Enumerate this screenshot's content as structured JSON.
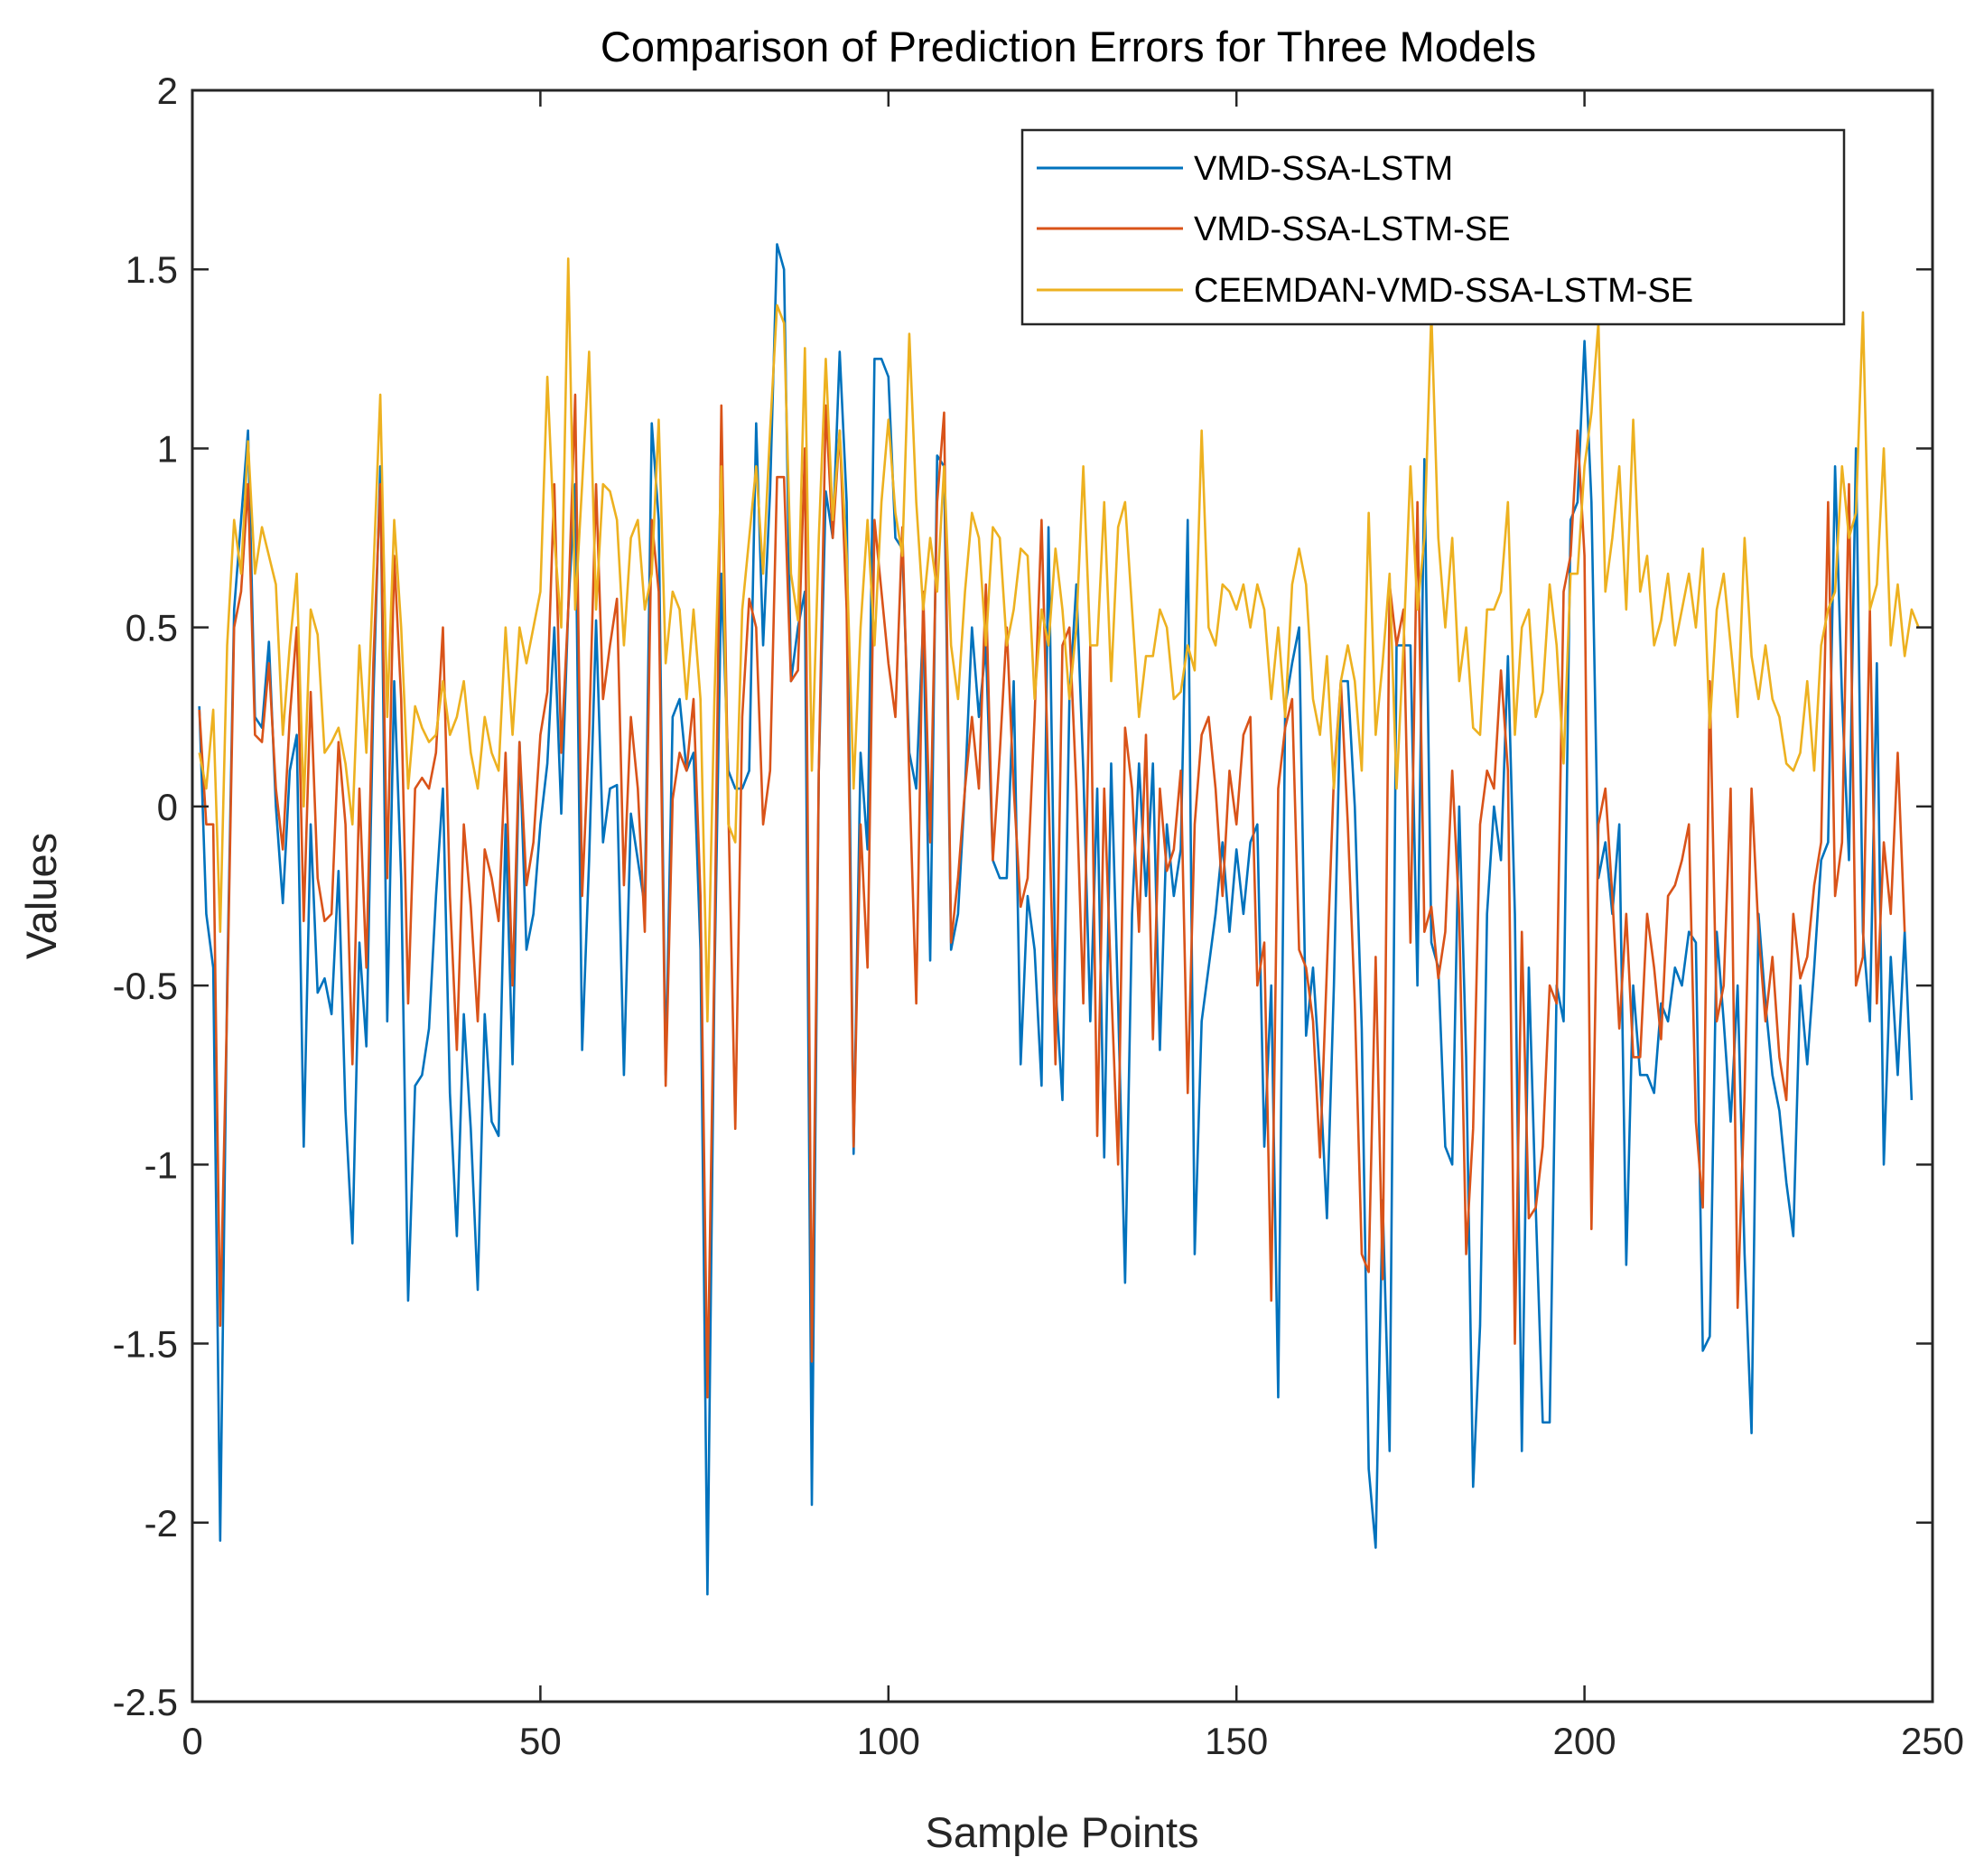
{
  "chart_data": {
    "type": "line",
    "title": "Comparison of Prediction Errors for Three Models",
    "xlabel": "Sample Points",
    "ylabel": "Values",
    "xlim": [
      0,
      250
    ],
    "ylim": [
      -2.5,
      2
    ],
    "xticks": [
      0,
      50,
      100,
      150,
      200,
      250
    ],
    "xtick_labels": [
      "0",
      "50",
      "100",
      "150",
      "200",
      "250"
    ],
    "yticks": [
      -2.5,
      -2,
      -1.5,
      -1,
      -0.5,
      0,
      0.5,
      1,
      1.5,
      2
    ],
    "ytick_labels": [
      "-2.5",
      "-2",
      "-1.5",
      "-1",
      "-0.5",
      "0",
      "0.5",
      "1",
      "1.5",
      "2"
    ],
    "grid": false,
    "legend_position": "top-right",
    "series": [
      {
        "name": "VMD-SSA-LSTM",
        "color": "#0072BD",
        "x_start": 1,
        "values": [
          0.28,
          -0.3,
          -0.45,
          -2.05,
          -0.5,
          0.55,
          0.8,
          1.05,
          0.25,
          0.22,
          0.46,
          0.0,
          -0.27,
          0.1,
          0.2,
          -0.95,
          -0.05,
          -0.52,
          -0.48,
          -0.58,
          -0.18,
          -0.85,
          -1.22,
          -0.38,
          -0.67,
          0.3,
          0.95,
          -0.6,
          0.35,
          -0.2,
          -1.38,
          -0.78,
          -0.75,
          -0.62,
          -0.25,
          0.05,
          -0.8,
          -1.2,
          -0.58,
          -0.9,
          -1.35,
          -0.58,
          -0.88,
          -0.92,
          -0.05,
          -0.72,
          0.18,
          -0.4,
          -0.3,
          -0.05,
          0.12,
          0.5,
          -0.02,
          0.55,
          0.9,
          -0.68,
          -0.15,
          0.52,
          -0.1,
          0.05,
          0.06,
          -0.75,
          -0.02,
          -0.15,
          -0.28,
          1.07,
          0.8,
          -0.75,
          0.25,
          0.3,
          0.1,
          0.15,
          -0.4,
          -2.2,
          -0.5,
          0.65,
          0.1,
          0.05,
          0.05,
          0.1,
          1.07,
          0.45,
          0.88,
          1.57,
          1.5,
          0.35,
          0.5,
          0.6,
          -1.95,
          0.1,
          0.88,
          0.75,
          1.27,
          0.85,
          -0.97,
          0.15,
          -0.12,
          1.25,
          1.25,
          1.2,
          0.75,
          0.72,
          0.15,
          0.05,
          0.52,
          -0.43,
          0.98,
          0.95,
          -0.4,
          -0.3,
          0.05,
          0.5,
          0.25,
          0.45,
          -0.15,
          -0.2,
          -0.2,
          0.35,
          -0.72,
          -0.25,
          -0.4,
          -0.78,
          0.78,
          -0.5,
          -0.82,
          0.3,
          0.62,
          0.1,
          -0.6,
          0.05,
          -0.98,
          0.12,
          -0.55,
          -1.33,
          -0.3,
          0.12,
          -0.25,
          0.12,
          -0.68,
          -0.05,
          -0.25,
          -0.12,
          0.8,
          -1.25,
          -0.6,
          -0.45,
          -0.3,
          -0.1,
          -0.35,
          -0.12,
          -0.3,
          -0.1,
          -0.05,
          -0.95,
          -0.5,
          -1.65,
          0.28,
          0.4,
          0.5,
          -0.64,
          -0.45,
          -0.75,
          -1.15,
          -0.5,
          0.35,
          0.35,
          0.0,
          -0.62,
          -1.85,
          -2.07,
          -1.1,
          -1.8,
          0.45,
          0.45,
          0.45,
          -0.5,
          0.97,
          -0.38,
          -0.45,
          -0.95,
          -1.0,
          0.0,
          -0.7,
          -1.9,
          -1.45,
          -0.3,
          0.0,
          -0.15,
          0.42,
          -0.3,
          -1.8,
          -0.45,
          -1.12,
          -1.72,
          -1.72,
          -0.5,
          -0.6,
          0.8,
          0.85,
          1.3,
          0.85,
          -0.2,
          -0.1,
          -0.3,
          -0.05,
          -1.28,
          -0.5,
          -0.75,
          -0.75,
          -0.8,
          -0.55,
          -0.6,
          -0.45,
          -0.5,
          -0.35,
          -0.38,
          -1.52,
          -1.48,
          -0.35,
          -0.6,
          -0.88,
          -0.5,
          -1.25,
          -1.75,
          -0.3,
          -0.55,
          -0.75,
          -0.85,
          -1.05,
          -1.2,
          -0.5,
          -0.72,
          -0.45,
          -0.15,
          -0.1,
          0.95,
          0.3,
          -0.15,
          1.0,
          -0.35,
          -0.6,
          0.4,
          -1.0,
          -0.42,
          -0.75,
          -0.35,
          -0.82
        ]
      },
      {
        "name": "VMD-SSA-LSTM-SE",
        "color": "#D95319",
        "x_start": 1,
        "values": [
          0.27,
          -0.05,
          -0.05,
          -1.45,
          -0.55,
          0.5,
          0.6,
          0.9,
          0.2,
          0.18,
          0.4,
          0.05,
          -0.12,
          0.25,
          0.5,
          -0.32,
          0.32,
          -0.2,
          -0.32,
          -0.3,
          0.18,
          -0.05,
          -0.72,
          0.05,
          -0.45,
          0.4,
          0.9,
          -0.2,
          0.7,
          0.3,
          -0.55,
          0.05,
          0.08,
          0.05,
          0.15,
          0.5,
          -0.25,
          -0.68,
          -0.05,
          -0.28,
          -0.6,
          -0.12,
          -0.2,
          -0.32,
          0.15,
          -0.5,
          0.18,
          -0.22,
          -0.1,
          0.2,
          0.32,
          0.9,
          0.15,
          0.55,
          1.15,
          -0.25,
          0.2,
          0.9,
          0.3,
          0.45,
          0.58,
          -0.22,
          0.25,
          0.05,
          -0.35,
          0.8,
          0.6,
          -0.78,
          0.02,
          0.15,
          0.1,
          0.3,
          -0.25,
          -1.65,
          -0.42,
          1.12,
          0.0,
          -0.9,
          0.25,
          0.58,
          0.5,
          -0.05,
          0.1,
          0.92,
          0.92,
          0.35,
          0.38,
          1.0,
          -1.55,
          0.1,
          1.12,
          0.75,
          1.05,
          0.55,
          -0.95,
          -0.05,
          -0.45,
          0.8,
          0.6,
          0.4,
          0.25,
          0.78,
          0.08,
          -0.55,
          0.6,
          -0.1,
          0.85,
          1.1,
          -0.38,
          -0.2,
          0.05,
          0.25,
          0.05,
          0.62,
          -0.15,
          0.15,
          0.5,
          0.05,
          -0.28,
          -0.2,
          0.25,
          0.8,
          0.05,
          -0.72,
          0.45,
          0.5,
          0.05,
          -0.55,
          0.45,
          -0.92,
          0.05,
          -0.5,
          -1.0,
          0.22,
          0.05,
          -0.35,
          0.2,
          -0.65,
          0.05,
          -0.18,
          -0.12,
          0.1,
          -0.8,
          -0.05,
          0.2,
          0.25,
          0.05,
          -0.25,
          0.1,
          -0.05,
          0.2,
          0.25,
          -0.5,
          -0.38,
          -1.38,
          0.05,
          0.22,
          0.3,
          -0.4,
          -0.45,
          -0.6,
          -0.98,
          -0.45,
          0.08,
          0.35,
          -0.05,
          -0.55,
          -1.25,
          -1.3,
          -0.42,
          -1.32,
          0.62,
          0.45,
          0.55,
          -0.38,
          0.85,
          -0.35,
          -0.28,
          -0.48,
          -0.35,
          0.1,
          -0.3,
          -1.25,
          -0.9,
          -0.05,
          0.1,
          0.05,
          0.38,
          0.1,
          -1.5,
          -0.35,
          -1.15,
          -1.12,
          -0.95,
          -0.5,
          -0.55,
          0.6,
          0.7,
          1.05,
          0.7,
          -1.18,
          -0.05,
          0.05,
          -0.25,
          -0.62,
          -0.3,
          -0.7,
          -0.7,
          -0.3,
          -0.45,
          -0.65,
          -0.25,
          -0.22,
          -0.15,
          -0.05,
          -0.88,
          -1.12,
          0.35,
          -0.6,
          -0.5,
          0.05,
          -1.4,
          -0.8,
          0.05,
          -0.35,
          -0.6,
          -0.42,
          -0.7,
          -0.82,
          -0.3,
          -0.48,
          -0.42,
          -0.22,
          -0.1,
          0.85,
          -0.25,
          -0.1,
          0.9,
          -0.5,
          -0.42,
          0.55,
          -0.55,
          -0.1,
          -0.3,
          0.15,
          -0.35
        ]
      },
      {
        "name": "CEEMDAN-VMD-SSA-LSTM-SE",
        "color": "#EDB120",
        "x_start": 1,
        "values": [
          0.15,
          0.05,
          0.27,
          -0.35,
          0.45,
          0.8,
          0.65,
          1.02,
          0.65,
          0.78,
          0.7,
          0.62,
          0.2,
          0.45,
          0.65,
          0.0,
          0.55,
          0.48,
          0.15,
          0.18,
          0.22,
          0.12,
          -0.05,
          0.45,
          0.15,
          0.65,
          1.15,
          0.25,
          0.8,
          0.5,
          0.05,
          0.28,
          0.22,
          0.18,
          0.2,
          0.35,
          0.2,
          0.25,
          0.35,
          0.15,
          0.05,
          0.25,
          0.15,
          0.1,
          0.5,
          0.2,
          0.5,
          0.4,
          0.5,
          0.6,
          1.2,
          0.75,
          0.5,
          1.53,
          0.55,
          0.9,
          1.27,
          0.55,
          0.9,
          0.88,
          0.8,
          0.45,
          0.75,
          0.8,
          0.55,
          0.65,
          1.08,
          0.4,
          0.6,
          0.55,
          0.3,
          0.55,
          0.3,
          -0.6,
          0.3,
          0.95,
          -0.05,
          -0.1,
          0.55,
          0.75,
          0.95,
          0.65,
          1.05,
          1.4,
          1.35,
          0.65,
          0.52,
          1.28,
          0.1,
          0.75,
          1.25,
          0.8,
          1.05,
          0.7,
          0.05,
          0.5,
          0.8,
          0.45,
          0.85,
          1.08,
          0.82,
          0.7,
          1.32,
          0.85,
          0.55,
          0.75,
          0.6,
          0.95,
          0.45,
          0.3,
          0.6,
          0.82,
          0.75,
          0.45,
          0.78,
          0.75,
          0.45,
          0.55,
          0.72,
          0.7,
          0.3,
          0.55,
          0.45,
          0.72,
          0.55,
          0.3,
          0.5,
          0.95,
          0.45,
          0.45,
          0.85,
          0.35,
          0.78,
          0.85,
          0.55,
          0.25,
          0.42,
          0.42,
          0.55,
          0.5,
          0.3,
          0.32,
          0.45,
          0.38,
          1.05,
          0.5,
          0.45,
          0.62,
          0.6,
          0.55,
          0.62,
          0.5,
          0.62,
          0.55,
          0.3,
          0.5,
          0.25,
          0.62,
          0.72,
          0.62,
          0.3,
          0.2,
          0.42,
          0.05,
          0.35,
          0.45,
          0.35,
          0.1,
          0.82,
          0.2,
          0.4,
          0.65,
          0.05,
          0.45,
          0.95,
          0.55,
          0.75,
          1.38,
          0.75,
          0.5,
          0.75,
          0.35,
          0.5,
          0.22,
          0.2,
          0.55,
          0.55,
          0.6,
          0.85,
          0.2,
          0.5,
          0.55,
          0.25,
          0.32,
          0.62,
          0.45,
          0.12,
          0.65,
          0.65,
          0.95,
          1.1,
          1.35,
          0.6,
          0.75,
          0.95,
          0.55,
          1.08,
          0.6,
          0.7,
          0.45,
          0.52,
          0.65,
          0.45,
          0.55,
          0.65,
          0.5,
          0.72,
          0.22,
          0.55,
          0.65,
          0.45,
          0.25,
          0.75,
          0.42,
          0.3,
          0.45,
          0.3,
          0.25,
          0.12,
          0.1,
          0.15,
          0.35,
          0.1,
          0.45,
          0.55,
          0.6,
          0.95,
          0.75,
          0.82,
          1.38,
          0.55,
          0.62,
          1.0,
          0.45,
          0.62,
          0.42,
          0.55,
          0.5
        ]
      }
    ]
  }
}
